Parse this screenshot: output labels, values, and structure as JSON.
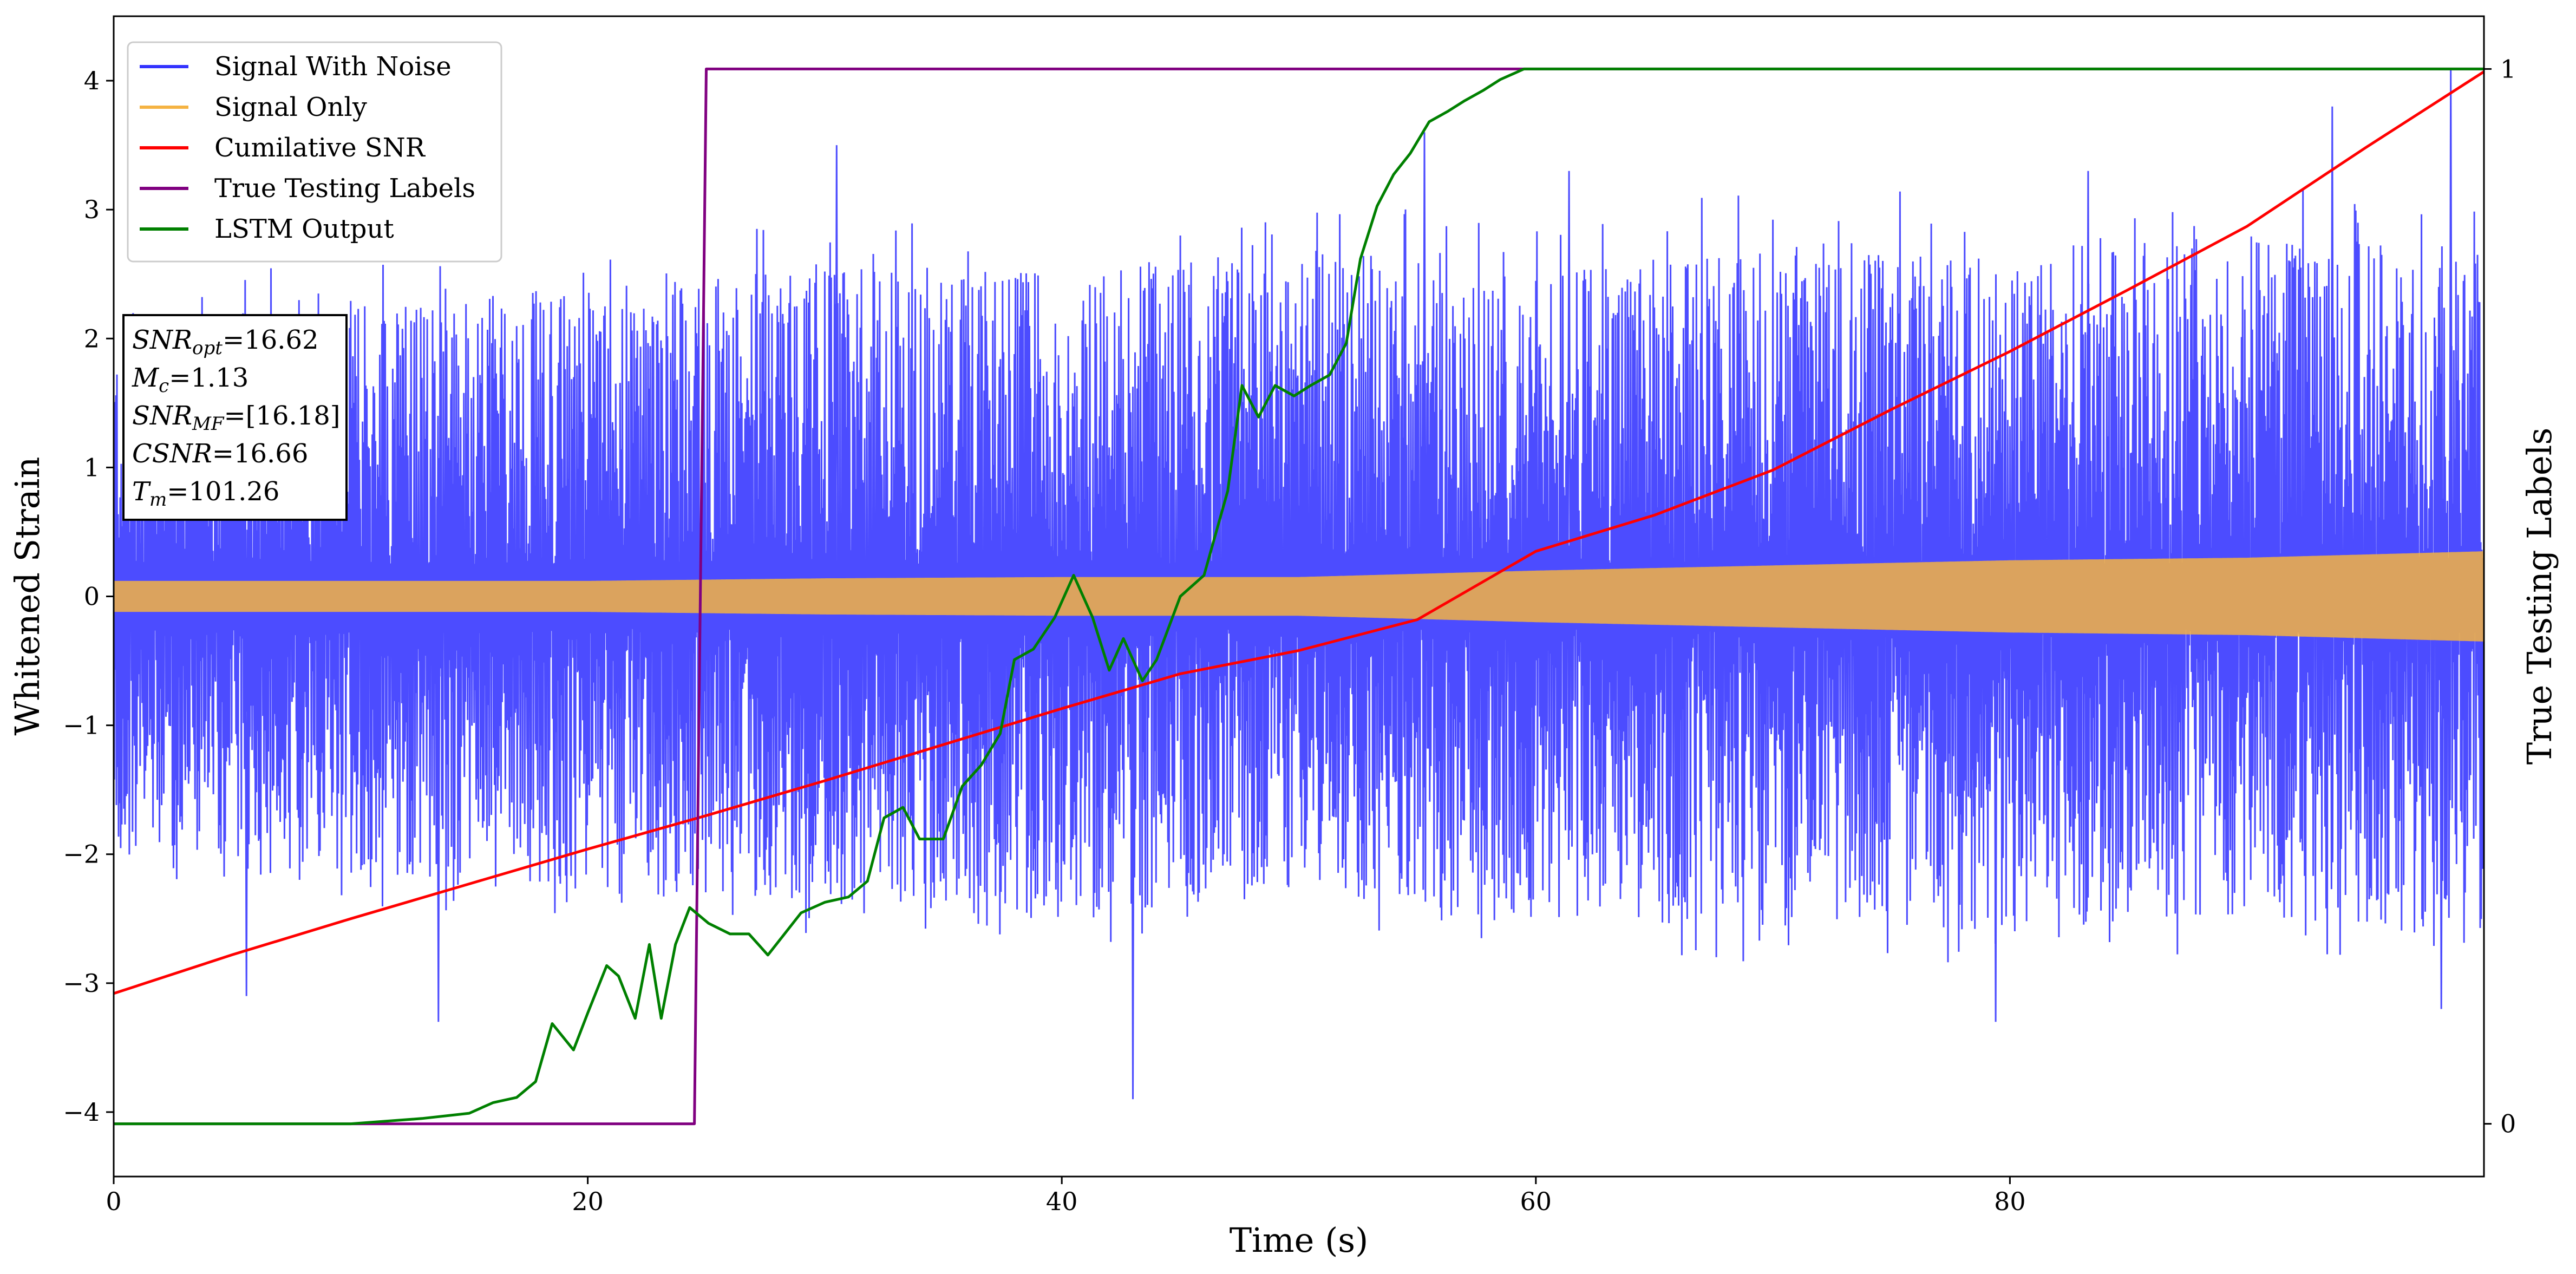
{
  "chart_data": {
    "type": "line",
    "xlabel": "Time (s)",
    "ylabel": "Whitened Strain",
    "ylabel_right": "True Testing Labels",
    "xlim": [
      0,
      100
    ],
    "ylim": [
      -4.5,
      4.5
    ],
    "ylim_right": [
      -0.05,
      1.05
    ],
    "x_ticks": [
      0,
      20,
      40,
      60,
      80
    ],
    "y_ticks": [
      -4,
      -3,
      -2,
      -1,
      0,
      1,
      2,
      3,
      4
    ],
    "y_ticks_right": [
      0,
      1
    ],
    "grid": false,
    "legend_position": "top-left",
    "legend": [
      {
        "name": "Signal With Noise",
        "color": "#3333ff"
      },
      {
        "name": "Signal Only",
        "color": "#f5b342"
      },
      {
        "name": "Cumilative SNR",
        "color": "#ff0000"
      },
      {
        "name": "True Testing Labels",
        "color": "#800080"
      },
      {
        "name": "LSTM Output",
        "color": "#008000"
      }
    ],
    "info_box": [
      {
        "base": "SNR",
        "sub": "opt",
        "value": "=16.62"
      },
      {
        "base": "M",
        "sub": "c",
        "value": "=1.13"
      },
      {
        "base": "SNR",
        "sub": "MF",
        "value": "=[16.18]"
      },
      {
        "base": "CSNR",
        "sub": "",
        "value": "=16.66"
      },
      {
        "base": "T",
        "sub": "m",
        "value": "=101.26"
      }
    ],
    "series": [
      {
        "name": "Signal With Noise",
        "axis": "left",
        "color": "#3333ff",
        "description": "dense noisy strain around 0",
        "upper_envelope": [
          [
            0,
            2.1
          ],
          [
            10,
            2.3
          ],
          [
            20,
            2.4
          ],
          [
            30,
            2.6
          ],
          [
            40,
            2.5
          ],
          [
            50,
            2.7
          ],
          [
            60,
            2.5
          ],
          [
            70,
            2.8
          ],
          [
            80,
            2.7
          ],
          [
            90,
            2.8
          ],
          [
            100,
            2.7
          ]
        ],
        "lower_envelope": [
          [
            0,
            -2.1
          ],
          [
            10,
            -2.2
          ],
          [
            20,
            -2.3
          ],
          [
            30,
            -2.4
          ],
          [
            40,
            -2.5
          ],
          [
            50,
            -2.3
          ],
          [
            60,
            -2.5
          ],
          [
            70,
            -2.6
          ],
          [
            80,
            -2.6
          ],
          [
            90,
            -2.5
          ],
          [
            100,
            -2.6
          ]
        ],
        "extremes": [
          [
            43.0,
            -3.9
          ],
          [
            98.6,
            4.1
          ],
          [
            98.2,
            -3.2
          ],
          [
            5.6,
            -3.1
          ],
          [
            13.7,
            -3.3
          ],
          [
            30.5,
            3.5
          ],
          [
            55.3,
            3.6
          ],
          [
            61.4,
            3.3
          ],
          [
            83.3,
            3.3
          ],
          [
            93.6,
            3.8
          ],
          [
            79.4,
            -3.3
          ]
        ]
      },
      {
        "name": "Signal Only",
        "axis": "left",
        "color": "#f5b342",
        "amplitude": [
          [
            0,
            0.12
          ],
          [
            10,
            0.12
          ],
          [
            20,
            0.12
          ],
          [
            30,
            0.14
          ],
          [
            40,
            0.15
          ],
          [
            50,
            0.15
          ],
          [
            60,
            0.2
          ],
          [
            70,
            0.24
          ],
          [
            80,
            0.28
          ],
          [
            90,
            0.3
          ],
          [
            100,
            0.35
          ]
        ]
      },
      {
        "name": "Cumilative SNR",
        "axis": "left",
        "color": "#ff0000",
        "x": [
          0,
          5,
          10,
          15,
          20,
          25,
          30,
          35,
          40,
          45,
          50,
          55,
          60,
          65,
          70,
          75,
          80,
          85,
          90,
          95,
          100
        ],
        "values": [
          -3.08,
          -2.78,
          -2.5,
          -2.23,
          -1.96,
          -1.7,
          -1.43,
          -1.15,
          -0.87,
          -0.6,
          -0.42,
          -0.18,
          0.35,
          0.63,
          0.98,
          1.45,
          1.9,
          2.38,
          2.87,
          3.48,
          4.07
        ]
      },
      {
        "name": "True Testing Labels",
        "axis": "right",
        "color": "#800080",
        "x": [
          0,
          24.5,
          25.0,
          100
        ],
        "values": [
          0,
          0,
          1,
          1
        ]
      },
      {
        "name": "LSTM Output",
        "axis": "right",
        "color": "#008000",
        "x": [
          0,
          10,
          13,
          15,
          16,
          17,
          17.8,
          18.5,
          19.4,
          20,
          20.8,
          21.3,
          22,
          22.6,
          23.1,
          23.7,
          24.3,
          25.1,
          26,
          26.8,
          27.6,
          28.3,
          29,
          30,
          31,
          31.8,
          32.5,
          33.3,
          34,
          35,
          35.8,
          36.6,
          37.4,
          38,
          38.8,
          39.7,
          40.5,
          41.3,
          42,
          42.6,
          43.4,
          44,
          45,
          46,
          47,
          47.6,
          48.3,
          49,
          49.8,
          50.5,
          51.3,
          52,
          52.6,
          53.3,
          54,
          54.7,
          55.5,
          56.3,
          57,
          57.8,
          58.5,
          59.5,
          60.5,
          61.5,
          62.5,
          65,
          70,
          80,
          90,
          100
        ],
        "values": [
          0,
          0,
          0.005,
          0.01,
          0.02,
          0.025,
          0.04,
          0.095,
          0.07,
          0.105,
          0.15,
          0.14,
          0.1,
          0.17,
          0.1,
          0.17,
          0.205,
          0.19,
          0.18,
          0.18,
          0.16,
          0.18,
          0.2,
          0.21,
          0.215,
          0.23,
          0.29,
          0.3,
          0.27,
          0.27,
          0.32,
          0.34,
          0.37,
          0.44,
          0.45,
          0.48,
          0.52,
          0.48,
          0.43,
          0.46,
          0.42,
          0.44,
          0.5,
          0.52,
          0.6,
          0.7,
          0.67,
          0.7,
          0.69,
          0.7,
          0.71,
          0.74,
          0.82,
          0.87,
          0.9,
          0.92,
          0.95,
          0.96,
          0.97,
          0.98,
          0.99,
          1.0,
          1.0,
          1.0,
          1.0,
          1.0,
          1.0,
          1.0,
          1.0,
          1.0
        ]
      }
    ]
  }
}
